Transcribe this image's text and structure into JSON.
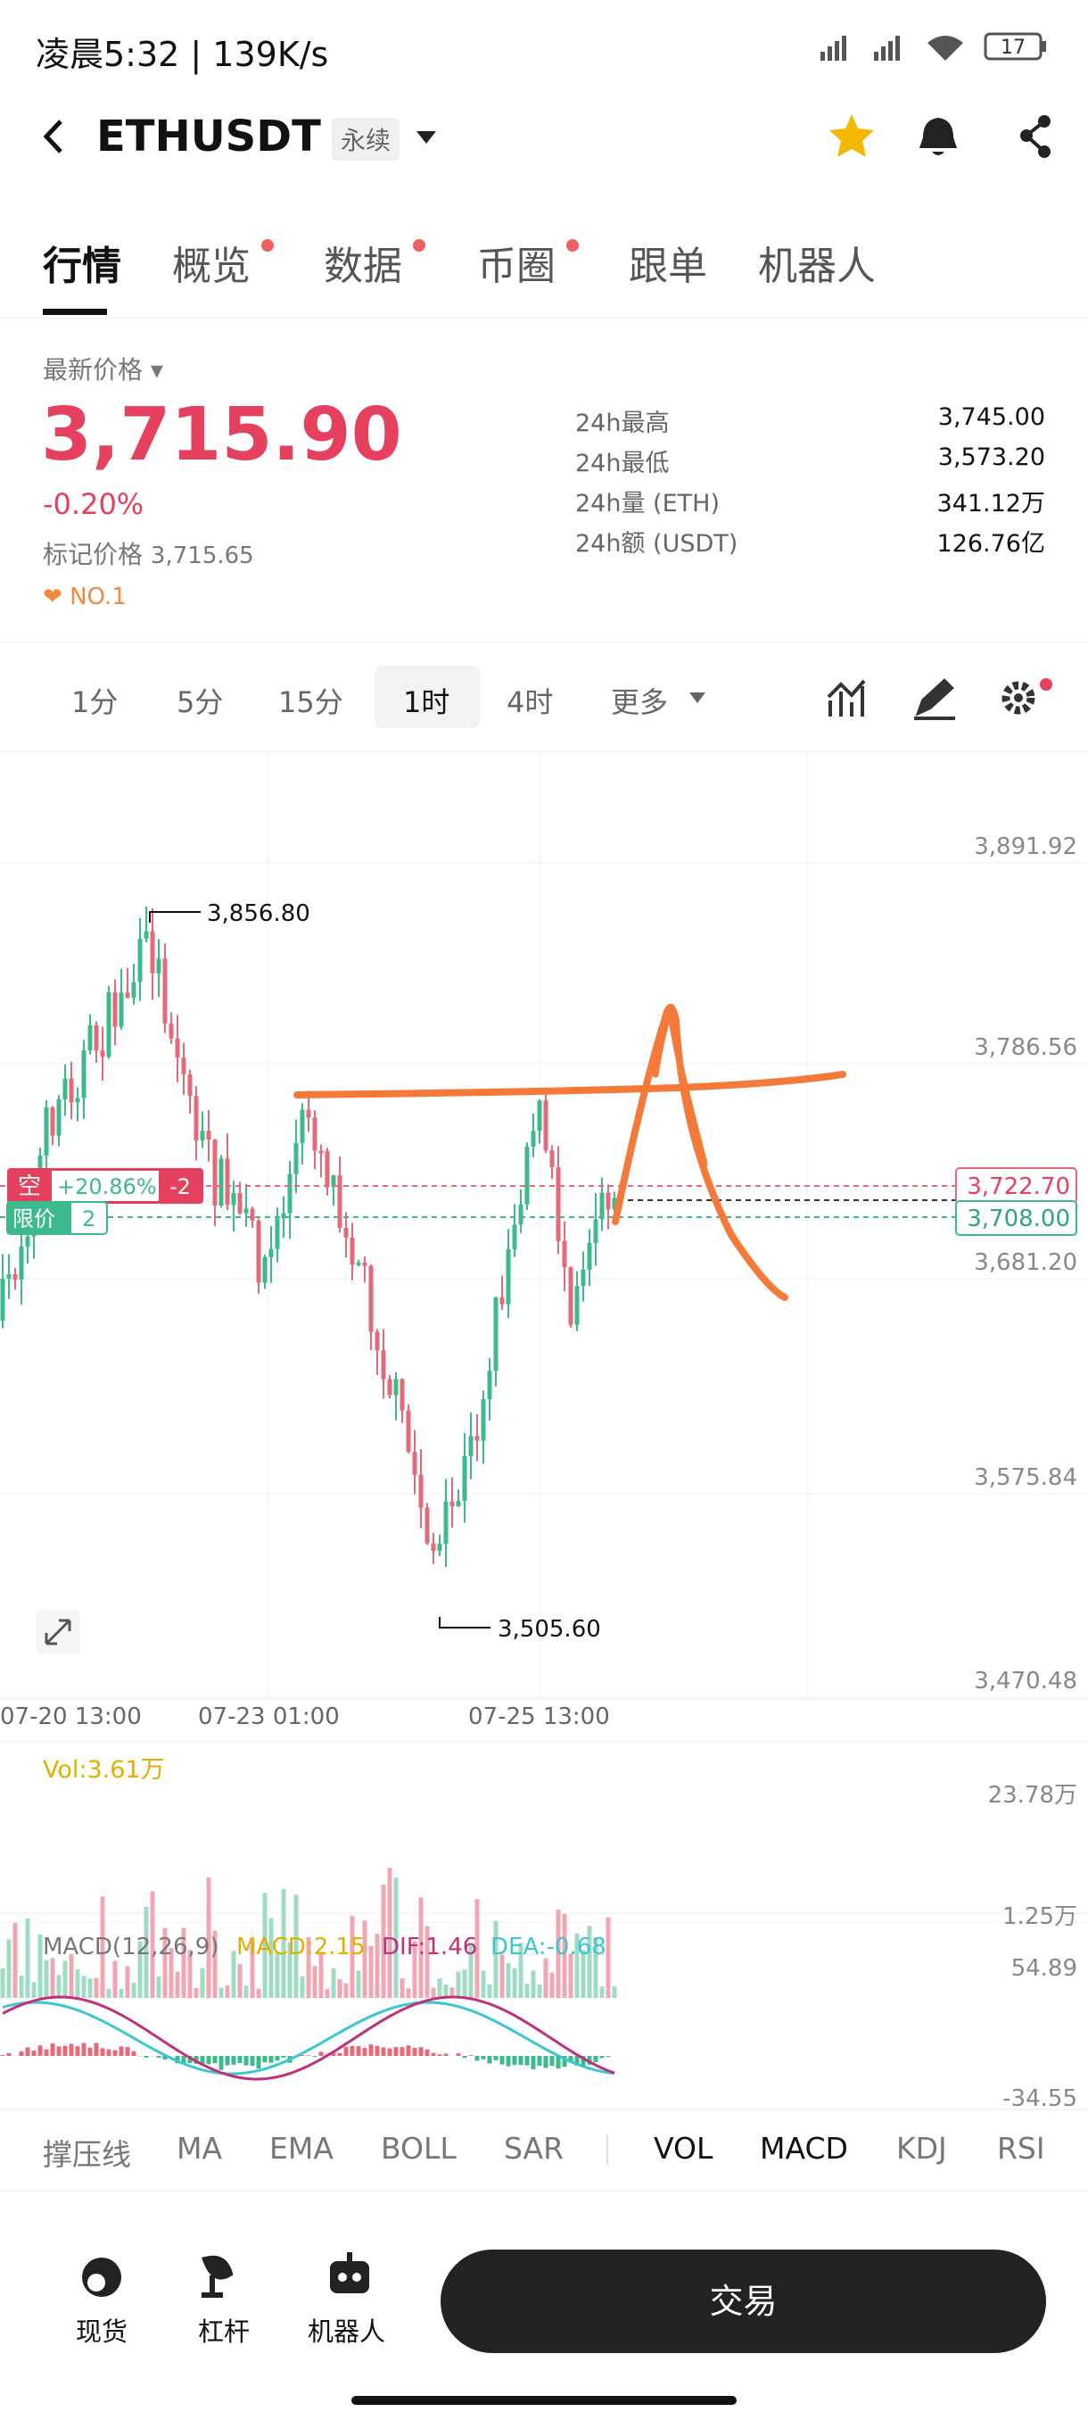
{
  "status": {
    "time": "凌晨5:32 | 139K/s",
    "battery": "17"
  },
  "header": {
    "symbol": "ETHUSDT",
    "badge": "永续"
  },
  "tabs": [
    "行情",
    "概览",
    "数据",
    "币圈",
    "跟单",
    "机器人"
  ],
  "price": {
    "label": "最新价格",
    "last": "3,715.90",
    "change": "-0.20%",
    "mark_label": "标记价格",
    "mark": "3,715.65",
    "rank": "NO.1"
  },
  "stats": [
    {
      "label": "24h最高",
      "value": "3,745.00"
    },
    {
      "label": "24h最低",
      "value": "3,573.20"
    },
    {
      "label": "24h量 (ETH)",
      "value": "341.12万"
    },
    {
      "label": "24h额 (USDT)",
      "value": "126.76亿"
    }
  ],
  "timeframes": [
    "1分",
    "5分",
    "15分",
    "1时",
    "4时",
    "更多"
  ],
  "chart": {
    "price_axis": [
      "3,891.92",
      "3,786.56",
      "3,681.20",
      "3,575.84",
      "3,470.48"
    ],
    "dates": [
      "07-20 13:00",
      "07-23 01:00",
      "07-25 13:00"
    ],
    "high": "3,856.80",
    "low": "3,505.60",
    "short": {
      "side": "空",
      "pnl": "+20.86%",
      "qty": "-2",
      "price": "3,722.70"
    },
    "limit": {
      "side": "限价",
      "qty": "2",
      "price": "3,708.00"
    }
  },
  "vol": {
    "label": "Vol:3.61万",
    "top": "23.78万",
    "bottom": "1.25万"
  },
  "macd": {
    "label": "MACD(12,26,9)",
    "macd": "MACD:2.15",
    "dif": "DIF:1.46",
    "dea": "DEA:-0.68",
    "top": "54.89",
    "bottom": "-34.55"
  },
  "indicators": [
    "撑压线",
    "MA",
    "EMA",
    "BOLL",
    "SAR",
    "VOL",
    "MACD",
    "KDJ",
    "RSI"
  ],
  "nav": [
    "现货",
    "杠杆",
    "机器人"
  ],
  "trade": "交易"
}
